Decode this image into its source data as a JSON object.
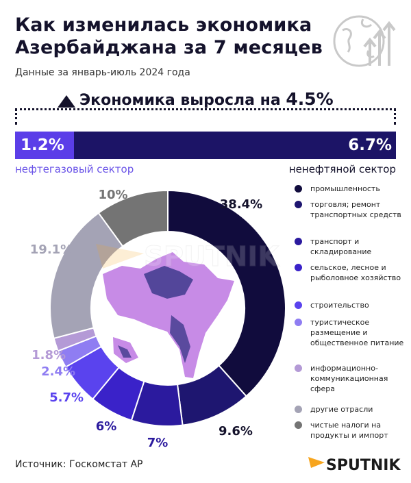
{
  "header": {
    "title_line1": "Как изменилась экономика",
    "title_line2": "Азербайджана за 7 месяцев",
    "subtitle": "Данные за январь-июль 2024 года"
  },
  "headline": {
    "text": "Экономика выросла на ",
    "value": "4.5%"
  },
  "sectors": {
    "oil": {
      "value": "1.2%",
      "label": "нефтегазовый сектор",
      "color": "#5b3ee8"
    },
    "non_oil": {
      "value": "6.7%",
      "label": "ненефтяной сектор",
      "color": "#1c1466"
    }
  },
  "chart_data": {
    "type": "pie",
    "variant": "donut",
    "categories": [
      "промышленность",
      "торговля; ремонт транспортных средств",
      "транспорт и складирование",
      "сельское, лесное и рыболовное хозяйство",
      "строительство",
      "туристическое размещение и общественное питание",
      "информационно-коммуникационная сфера",
      "другие отрасли",
      "чистые налоги на продукты и импорт"
    ],
    "values": [
      38.4,
      9.6,
      7,
      6,
      5.7,
      2.4,
      1.8,
      19.1,
      10
    ],
    "value_labels": [
      "38.4%",
      "9.6%",
      "7%",
      "6%",
      "5.7%",
      "2.4%",
      "1.8%",
      "19.1%",
      "10%"
    ],
    "colors": [
      "#110c3d",
      "#1e1670",
      "#2b1a9e",
      "#3a22c9",
      "#5a43ee",
      "#8f7df2",
      "#b49ad6",
      "#a4a3b5",
      "#747474"
    ],
    "label_colors": [
      "#14122b",
      "#14122b",
      "#2b1a9e",
      "#2b1a9e",
      "#5a43ee",
      "#8f7df2",
      "#b49ad6",
      "#a4a3b5",
      "#747474"
    ]
  },
  "watermark": "SPUTNIK",
  "footer": {
    "source": "Источник: Госкомстат АР",
    "brand": "SPUTNIK"
  }
}
